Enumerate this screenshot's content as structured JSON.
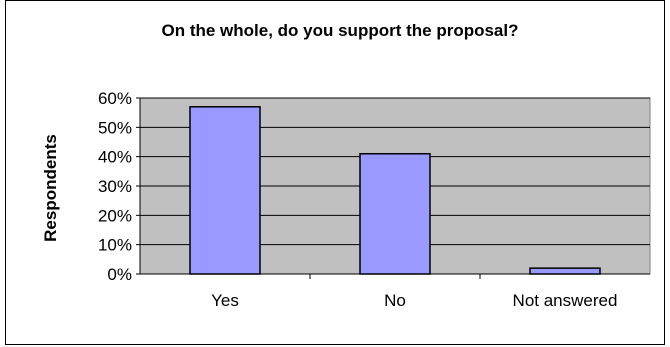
{
  "chart_data": {
    "type": "bar",
    "title": "On the whole, do you support the proposal?",
    "xlabel": "",
    "ylabel": "Respondents",
    "categories": [
      "Yes",
      "No",
      "Not answered"
    ],
    "values": [
      0.57,
      0.41,
      0.02
    ],
    "ylim": [
      0,
      0.6
    ],
    "yticks": [
      0,
      0.1,
      0.2,
      0.3,
      0.4,
      0.5,
      0.6
    ],
    "ytick_labels": [
      "0%",
      "10%",
      "20%",
      "30%",
      "40%",
      "50%",
      "60%"
    ],
    "grid": true,
    "legend": "none",
    "colors": {
      "bar_fill": "#9999ff",
      "bar_stroke": "#000000",
      "plot_bg": "#c0c0c0",
      "gridline": "#000000"
    }
  }
}
